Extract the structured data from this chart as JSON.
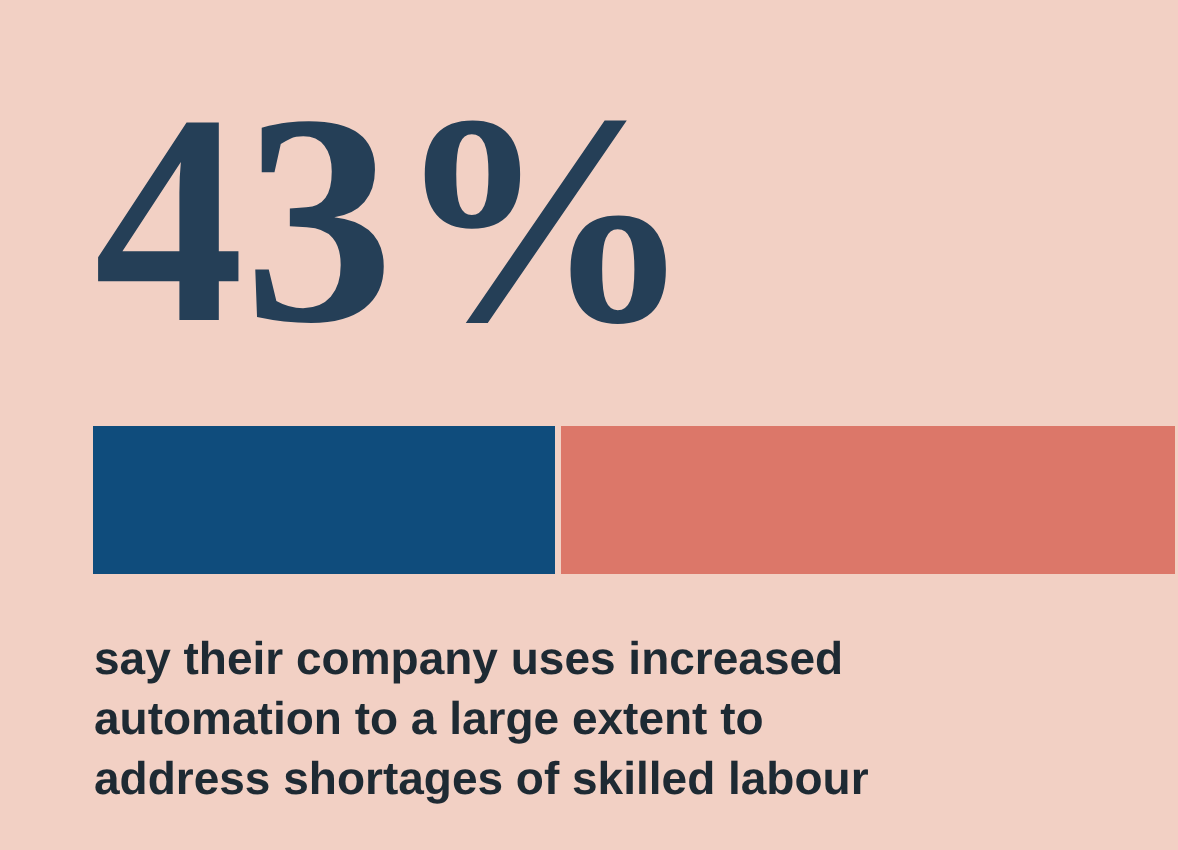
{
  "chart_data": {
    "type": "bar",
    "orientation": "horizontal",
    "stacked": true,
    "categories": [
      null
    ],
    "series": [
      {
        "color": "#0f4c7c",
        "values": [
          43
        ],
        "value_labels": [
          "43%"
        ]
      },
      {
        "color": "#dc7769",
        "values": [
          57
        ]
      }
    ],
    "annotations": [
      "say their company uses increased automation to a large extent to address shortages of skilled labour"
    ]
  }
}
